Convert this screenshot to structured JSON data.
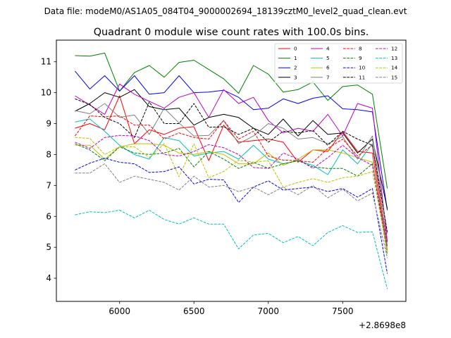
{
  "chart_data": {
    "type": "line",
    "suptitle": "Data file: modeM0/AS1A05_084T04_9000002694_18139cztM0_level2_quad_clean.evt",
    "title": "Quadrant 0 module wise count rates with 100.0s bins.",
    "xlabel": "",
    "ylabel": "",
    "x_offset_label": "+2.8698e8",
    "xlim": [
      5575,
      7925
    ],
    "ylim": [
      3.25,
      11.7
    ],
    "x_ticks": [
      6000,
      6500,
      7000,
      7500
    ],
    "y_ticks": [
      4,
      5,
      6,
      7,
      8,
      9,
      10,
      11
    ],
    "grid": false,
    "legend_position": "top-right",
    "x": [
      5700,
      5800,
      5900,
      6000,
      6100,
      6200,
      6300,
      6400,
      6500,
      6600,
      6700,
      6800,
      6900,
      7000,
      7100,
      7200,
      7300,
      7400,
      7500,
      7600,
      7700,
      7800
    ],
    "series": [
      {
        "name": "0",
        "color": "#ff0000",
        "dash": "solid",
        "values": [
          8.85,
          9.0,
          8.8,
          9.9,
          8.35,
          8.8,
          8.65,
          8.85,
          8.9,
          7.8,
          8.95,
          8.4,
          8.45,
          8.5,
          8.4,
          7.75,
          8.15,
          8.1,
          8.75,
          8.1,
          8.05,
          4.9
        ]
      },
      {
        "name": "1",
        "color": "#008000",
        "dash": "solid",
        "values": [
          11.2,
          11.18,
          11.28,
          10.05,
          10.65,
          10.88,
          10.5,
          10.98,
          11.05,
          10.75,
          10.45,
          9.98,
          10.88,
          10.6,
          10.02,
          10.1,
          10.35,
          9.75,
          10.2,
          10.25,
          9.95,
          6.9
        ]
      },
      {
        "name": "2",
        "color": "#0000ff",
        "dash": "solid",
        "values": [
          10.7,
          10.12,
          10.55,
          10.05,
          10.55,
          9.95,
          10.0,
          10.55,
          10.0,
          10.02,
          10.08,
          9.85,
          9.45,
          9.5,
          9.8,
          9.65,
          9.82,
          9.9,
          9.48,
          9.45,
          9.38,
          6.2
        ]
      },
      {
        "name": "3",
        "color": "#000000",
        "dash": "solid",
        "values": [
          9.4,
          9.65,
          10.0,
          9.85,
          10.1,
          9.55,
          9.45,
          9.5,
          8.95,
          9.2,
          9.3,
          9.2,
          8.85,
          8.65,
          9.15,
          8.6,
          9.1,
          8.65,
          8.7,
          8.05,
          8.5,
          6.25
        ]
      },
      {
        "name": "4",
        "color": "#c000c0",
        "dash": "solid",
        "values": [
          9.9,
          9.6,
          9.3,
          10.28,
          9.95,
          9.72,
          9.5,
          9.85,
          10.0,
          9.2,
          10.1,
          9.65,
          9.85,
          9.1,
          8.7,
          8.85,
          8.75,
          9.3,
          8.6,
          9.65,
          9.5,
          5.2
        ]
      },
      {
        "name": "5",
        "color": "#00c0c0",
        "dash": "solid",
        "values": [
          9.05,
          9.15,
          8.75,
          8.3,
          8.0,
          7.85,
          8.55,
          8.45,
          7.95,
          8.05,
          8.1,
          7.85,
          8.3,
          7.85,
          7.7,
          7.8,
          7.65,
          7.35,
          8.15,
          7.7,
          8.35,
          5.05
        ]
      },
      {
        "name": "6",
        "color": "#c0c000",
        "dash": "solid",
        "values": [
          8.3,
          8.3,
          7.85,
          8.25,
          8.35,
          8.35,
          8.3,
          8.05,
          8.0,
          8.1,
          8.0,
          7.7,
          7.7,
          8.05,
          7.65,
          7.85,
          8.15,
          8.15,
          8.05,
          7.9,
          7.75,
          4.85
        ]
      },
      {
        "name": "7",
        "color": "#808080",
        "dash": "solid",
        "values": [
          9.42,
          9.32,
          9.65,
          9.2,
          9.28,
          8.65,
          9.5,
          9.02,
          8.6,
          8.62,
          9.1,
          8.35,
          8.6,
          9.0,
          8.85,
          8.5,
          8.55,
          8.35,
          8.58,
          7.85,
          8.6,
          5.45
        ]
      },
      {
        "name": "8",
        "color": "#ff0000",
        "dash": "dashed",
        "values": [
          8.6,
          9.25,
          9.22,
          9.25,
          8.95,
          8.95,
          8.5,
          8.7,
          8.55,
          8.5,
          9.1,
          8.5,
          8.75,
          7.95,
          7.82,
          7.8,
          7.75,
          8.2,
          8.5,
          7.95,
          8.3,
          5.15
        ]
      },
      {
        "name": "9",
        "color": "#008000",
        "dash": "dashed",
        "values": [
          8.35,
          8.15,
          7.8,
          8.25,
          8.05,
          8.0,
          8.05,
          8.2,
          7.6,
          8.1,
          7.85,
          7.55,
          7.75,
          7.55,
          7.7,
          7.8,
          7.6,
          7.55,
          7.55,
          7.3,
          7.7,
          4.75
        ]
      },
      {
        "name": "10",
        "color": "#0000ff",
        "dash": "dashed",
        "values": [
          7.5,
          7.72,
          7.88,
          7.75,
          7.7,
          7.42,
          7.45,
          7.6,
          7.05,
          7.2,
          7.18,
          6.45,
          6.95,
          7.15,
          6.85,
          6.9,
          6.95,
          6.8,
          6.9,
          6.62,
          6.9,
          4.15
        ]
      },
      {
        "name": "11",
        "color": "#000000",
        "dash": "dashed",
        "values": [
          9.8,
          9.62,
          9.2,
          9.0,
          8.55,
          9.7,
          9.0,
          9.0,
          9.65,
          8.88,
          8.9,
          8.65,
          8.85,
          8.4,
          8.75,
          8.7,
          8.78,
          8.3,
          8.75,
          8.5,
          8.3,
          5.5
        ]
      },
      {
        "name": "12",
        "color": "#c000c0",
        "dash": "dashed",
        "values": [
          8.4,
          8.2,
          8.55,
          8.62,
          8.6,
          8.45,
          8.0,
          7.95,
          8.1,
          8.32,
          8.22,
          8.0,
          7.58,
          7.55,
          8.05,
          7.85,
          7.55,
          7.9,
          8.3,
          7.9,
          7.65,
          5.0
        ]
      },
      {
        "name": "13",
        "color": "#00c0c0",
        "dash": "dashed",
        "values": [
          6.05,
          6.15,
          6.12,
          6.2,
          5.95,
          6.2,
          5.9,
          5.75,
          5.95,
          5.75,
          5.75,
          4.95,
          5.4,
          5.45,
          5.15,
          5.35,
          5.05,
          5.48,
          5.7,
          5.48,
          5.5,
          3.65
        ]
      },
      {
        "name": "14",
        "color": "#c0c000",
        "dash": "dashed",
        "values": [
          8.55,
          8.52,
          8.0,
          8.25,
          8.25,
          7.9,
          8.35,
          7.28,
          8.35,
          7.25,
          7.45,
          7.82,
          7.75,
          7.8,
          6.95,
          7.1,
          7.22,
          7.1,
          7.25,
          7.3,
          7.45,
          4.85
        ]
      },
      {
        "name": "15",
        "color": "#808080",
        "dash": "dashed",
        "values": [
          7.4,
          7.4,
          7.7,
          7.1,
          7.3,
          7.2,
          7.1,
          6.85,
          7.3,
          6.95,
          7.0,
          6.8,
          6.95,
          6.7,
          6.95,
          6.7,
          7.0,
          6.6,
          6.88,
          6.5,
          6.75,
          4.65
        ]
      }
    ]
  }
}
